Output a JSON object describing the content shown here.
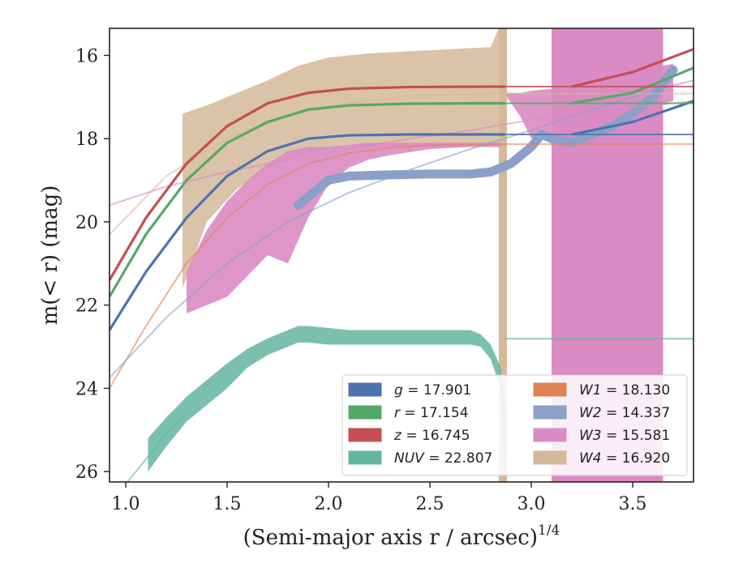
{
  "chart_data": {
    "type": "line",
    "title": "",
    "xlabel_main": "(Semi-major axis r / arcsec)",
    "xlabel_exp": "1/4",
    "ylabel": "m(< r) (mag)",
    "xlim": [
      0.92,
      3.8
    ],
    "ylim": [
      26.25,
      15.35
    ],
    "y_inverted": true,
    "grid": false,
    "legend_placement": "lower-right",
    "x_ticks": [
      "1.0",
      "1.5",
      "2.0",
      "2.5",
      "3.0",
      "3.5"
    ],
    "y_ticks": [
      "16",
      "18",
      "20",
      "22",
      "24",
      "26"
    ],
    "series": [
      {
        "key": "g",
        "name": "g = 17.901",
        "color": "#4c72b0",
        "model_x": [
          0.92,
          1.1,
          1.3,
          1.5,
          1.7,
          1.9,
          2.1,
          2.4,
          2.8,
          3.2,
          3.8
        ],
        "model_y": [
          22.6,
          21.2,
          19.9,
          18.9,
          18.3,
          18.0,
          17.92,
          17.9,
          17.9,
          17.9,
          17.9
        ],
        "obs_x": [
          0.92,
          1.1,
          1.3,
          1.5,
          1.7,
          1.9,
          2.1,
          2.4,
          2.8,
          2.87
        ],
        "obs_y": [
          22.6,
          21.2,
          19.9,
          18.9,
          18.3,
          18.0,
          17.92,
          17.9,
          17.9,
          17.9
        ],
        "ext_x": [
          3.2,
          3.5,
          3.8
        ],
        "ext_y": [
          17.9,
          17.6,
          17.1
        ]
      },
      {
        "key": "r",
        "name": "r = 17.154",
        "color": "#55a868",
        "model_x": [
          0.92,
          1.1,
          1.3,
          1.5,
          1.7,
          1.9,
          2.1,
          2.4,
          2.8,
          3.2,
          3.8
        ],
        "model_y": [
          21.8,
          20.3,
          19.0,
          18.1,
          17.6,
          17.3,
          17.2,
          17.16,
          17.15,
          17.15,
          17.15
        ],
        "obs_x": [
          0.92,
          1.1,
          1.3,
          1.5,
          1.7,
          1.9,
          2.1,
          2.4,
          2.8,
          2.87
        ],
        "obs_y": [
          21.8,
          20.3,
          19.0,
          18.1,
          17.6,
          17.3,
          17.2,
          17.16,
          17.15,
          17.15
        ],
        "ext_x": [
          3.2,
          3.5,
          3.8
        ],
        "ext_y": [
          17.15,
          16.9,
          16.3
        ]
      },
      {
        "key": "z",
        "name": "z = 16.745",
        "color": "#c44e52",
        "model_x": [
          0.92,
          1.1,
          1.3,
          1.5,
          1.7,
          1.9,
          2.1,
          2.4,
          2.8,
          3.2,
          3.8
        ],
        "model_y": [
          21.4,
          19.9,
          18.6,
          17.7,
          17.15,
          16.9,
          16.8,
          16.76,
          16.75,
          16.75,
          16.75
        ],
        "obs_x": [
          0.92,
          1.1,
          1.3,
          1.5,
          1.7,
          1.9,
          2.1,
          2.4,
          2.8,
          2.87
        ],
        "obs_y": [
          21.4,
          19.9,
          18.6,
          17.7,
          17.15,
          16.9,
          16.8,
          16.76,
          16.75,
          16.75
        ],
        "ext_x": [
          3.2,
          3.5,
          3.8
        ],
        "ext_y": [
          16.75,
          16.4,
          15.85
        ]
      },
      {
        "key": "NUV",
        "name": "NUV = 22.807",
        "color": "#64b5a0",
        "model_x": [
          0.92,
          1.0,
          1.1,
          1.2,
          1.3
        ],
        "model_y": [
          26.8,
          26.3,
          25.7,
          25.1,
          24.6
        ],
        "band_x": [
          1.11,
          1.2,
          1.3,
          1.4,
          1.5,
          1.6,
          1.7,
          1.8,
          1.85,
          1.9,
          2.0,
          2.1,
          2.3,
          2.5,
          2.7,
          2.75,
          2.8,
          2.85,
          2.87
        ],
        "band_upper": [
          25.2,
          24.7,
          24.2,
          23.8,
          23.4,
          23.05,
          22.8,
          22.6,
          22.5,
          22.5,
          22.55,
          22.6,
          22.6,
          22.6,
          22.6,
          22.7,
          22.95,
          23.5,
          24.5
        ],
        "band_lower": [
          26.0,
          25.4,
          24.8,
          24.4,
          24.0,
          23.5,
          23.2,
          23.0,
          22.9,
          22.9,
          22.95,
          22.95,
          22.95,
          22.95,
          22.95,
          23.0,
          23.3,
          24.0,
          26.2
        ],
        "const_y": 22.807,
        "const_x": [
          2.87,
          3.8
        ]
      },
      {
        "key": "W1",
        "name": "W1 = 18.130",
        "color": "#dd8452",
        "model_x": [
          0.92,
          1.1,
          1.3,
          1.5,
          1.7,
          1.9,
          2.1,
          2.3,
          2.5,
          2.8,
          3.2,
          3.8
        ],
        "model_y": [
          24.0,
          22.5,
          21.0,
          19.9,
          19.1,
          18.6,
          18.35,
          18.22,
          18.16,
          18.13,
          18.13,
          18.13
        ]
      },
      {
        "key": "W2",
        "name": "W2 = 14.337",
        "color": "#8c9fc8",
        "model_x": [
          0.92,
          1.2,
          1.5,
          1.8,
          2.1,
          2.4,
          2.7,
          3.0,
          3.3,
          3.6,
          3.8
        ],
        "model_y": [
          23.75,
          22.3,
          21.0,
          20.0,
          19.3,
          18.75,
          18.25,
          17.8,
          17.3,
          16.85,
          16.6
        ],
        "thick_x": [
          1.85,
          1.95,
          2.0,
          2.1,
          2.3,
          2.5,
          2.7,
          2.8,
          2.85,
          2.9,
          3.0,
          3.05,
          3.1,
          3.2,
          3.3,
          3.4,
          3.5,
          3.6,
          3.7
        ],
        "thick_y": [
          19.6,
          19.2,
          19.0,
          18.9,
          18.87,
          18.85,
          18.85,
          18.8,
          18.7,
          18.6,
          18.2,
          17.9,
          18.0,
          18.1,
          17.9,
          17.7,
          17.4,
          17.0,
          16.35
        ]
      },
      {
        "key": "W3",
        "name": "W3 = 15.581",
        "color": "#da8bc3",
        "model_x": [
          0.92,
          1.2,
          1.5,
          1.8,
          2.1,
          2.4,
          2.7,
          3.0,
          3.3,
          3.6,
          3.8
        ],
        "model_y": [
          19.6,
          19.15,
          18.8,
          18.5,
          18.25,
          18.0,
          17.8,
          17.55,
          17.35,
          17.2,
          17.1
        ],
        "band_x": [
          1.3,
          1.4,
          1.5,
          1.6,
          1.7,
          1.8,
          1.9,
          2.0,
          2.1,
          2.2,
          2.3,
          2.5,
          2.7,
          2.85
        ],
        "band_upper": [
          21.2,
          20.2,
          19.5,
          19.0,
          18.6,
          18.3,
          18.2,
          18.2,
          18.15,
          18.1,
          18.1,
          18.1,
          18.1,
          18.1
        ],
        "band_lower": [
          22.2,
          22.0,
          21.8,
          21.3,
          20.8,
          21.0,
          19.9,
          19.1,
          18.7,
          18.5,
          18.4,
          18.25,
          18.2,
          18.2
        ],
        "band2_x": [
          2.88,
          2.95,
          3.0,
          3.1,
          3.2,
          3.25,
          3.3,
          3.35,
          3.4,
          3.5,
          3.6,
          3.7
        ],
        "band2_upper": [
          16.9,
          16.9,
          16.85,
          16.8,
          16.7,
          16.65,
          16.6,
          16.6,
          16.55,
          16.4,
          16.3,
          16.2
        ],
        "band2_lower": [
          17.0,
          17.5,
          18.0,
          17.9,
          17.5,
          17.7,
          18.0,
          17.7,
          17.4,
          17.5,
          17.2,
          17.1
        ],
        "big_x": [
          3.1,
          3.65
        ],
        "big_y_top": 15.3,
        "big_y_bottom": 26.3
      },
      {
        "key": "W4",
        "name": "W4 = 16.920",
        "color": "#d5b99a",
        "model_x": [
          0.92,
          1.2,
          1.5,
          1.8,
          2.1,
          2.4,
          2.7,
          3.0,
          3.3,
          3.6,
          3.8
        ],
        "model_y": [
          20.3,
          18.9,
          18.0,
          17.45,
          17.15,
          16.98,
          16.92,
          16.92,
          16.92,
          16.92,
          16.92
        ],
        "band_x": [
          1.28,
          1.4,
          1.55,
          1.7,
          1.85,
          2.0,
          2.2,
          2.4,
          2.6,
          2.8,
          2.84
        ],
        "band_upper": [
          17.4,
          17.2,
          16.9,
          16.6,
          16.25,
          16.05,
          15.95,
          15.9,
          15.85,
          15.8,
          15.35
        ],
        "band_lower": [
          21.6,
          20.0,
          19.2,
          18.7,
          18.4,
          18.25,
          18.2,
          18.2,
          18.2,
          18.2,
          18.2
        ],
        "spike_x": [
          2.84,
          2.88
        ],
        "spike_y_top": 15.3,
        "spike_y_bottom": 26.3
      }
    ],
    "legend_entries": [
      {
        "label_var": "g",
        "label_val": " = 17.901",
        "color": "#4c72b0"
      },
      {
        "label_var": "r",
        "label_val": " = 17.154",
        "color": "#55a868"
      },
      {
        "label_var": "z",
        "label_val": " = 16.745",
        "color": "#c44e52"
      },
      {
        "label_var": "NUV",
        "label_val": " = 22.807",
        "color": "#64b5a0"
      },
      {
        "label_var": "W1",
        "label_val": " = 18.130",
        "color": "#dd8452"
      },
      {
        "label_var": "W2",
        "label_val": " = 14.337",
        "color": "#8c9fc8"
      },
      {
        "label_var": "W3",
        "label_val": " = 15.581",
        "color": "#da8bc3"
      },
      {
        "label_var": "W4",
        "label_val": " = 16.920",
        "color": "#d5b99a"
      }
    ]
  }
}
